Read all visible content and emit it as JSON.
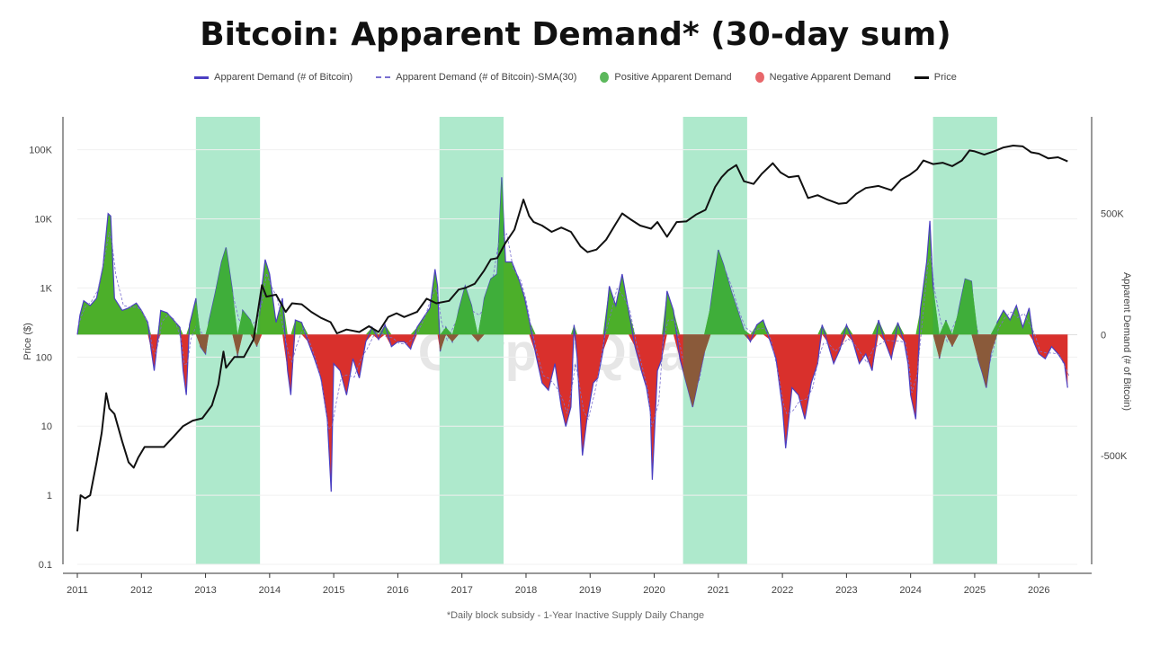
{
  "chart_data": {
    "type": "area",
    "title": "Bitcoin: Apparent Demand* (30-day sum)",
    "footnote": "*Daily block subsidy - 1-Year Inactive Supply Daily Change",
    "watermark": "CryptoQuant",
    "legend": {
      "placement": "top-center",
      "items": [
        {
          "label": "Apparent Demand (# of Bitcoin)",
          "style": "line",
          "color": "#4b3fc2"
        },
        {
          "label": "Apparent Demand (# of Bitcoin)-SMA(30)",
          "style": "dashed",
          "color": "#7a6fd0"
        },
        {
          "label": "Positive Apparent Demand",
          "style": "dot",
          "color": "#5cb85c"
        },
        {
          "label": "Negative Apparent Demand",
          "style": "dot",
          "color": "#e8676b"
        },
        {
          "label": "Price",
          "style": "line",
          "color": "#111111"
        }
      ]
    },
    "x_axis": {
      "ticks": [
        "2011",
        "2012",
        "2013",
        "2014",
        "2015",
        "2016",
        "2017",
        "2018",
        "2019",
        "2020",
        "2021",
        "2022",
        "2023",
        "2024",
        "2025",
        "2026"
      ],
      "range": [
        2011.0,
        2026.6
      ]
    },
    "y_left": {
      "label": "Price ($)",
      "scale": "log",
      "range": [
        0.1,
        300000
      ],
      "ticks": [
        "0.1",
        "1",
        "10",
        "100",
        "1K",
        "10K",
        "100K"
      ]
    },
    "y_right": {
      "label": "Apparent Demand (# of Bitcoin)",
      "scale": "linear",
      "range": [
        -950000,
        900000
      ],
      "ticks": [
        "500K",
        "0",
        "-500K"
      ]
    },
    "highlight_periods": [
      [
        2012.85,
        2013.85
      ],
      [
        2016.65,
        2017.65
      ],
      [
        2020.45,
        2021.45
      ],
      [
        2024.35,
        2025.35
      ]
    ],
    "colors": {
      "positive": "#4caf2a",
      "negative": "#d9302c",
      "overlap_positive": "#3fae3a",
      "overlap_negative": "#8a5a3a",
      "highlight": "#aee9cc",
      "demand_line": "#4b3fc2",
      "price": "#111111"
    },
    "price": [
      [
        2011.0,
        0.3
      ],
      [
        2011.05,
        1.0
      ],
      [
        2011.12,
        0.9
      ],
      [
        2011.2,
        1.0
      ],
      [
        2011.3,
        3.0
      ],
      [
        2011.38,
        8.0
      ],
      [
        2011.45,
        30.0
      ],
      [
        2011.5,
        18.0
      ],
      [
        2011.58,
        15.0
      ],
      [
        2011.7,
        6.0
      ],
      [
        2011.8,
        3.0
      ],
      [
        2011.88,
        2.5
      ],
      [
        2011.95,
        3.5
      ],
      [
        2012.05,
        5.0
      ],
      [
        2012.2,
        5.0
      ],
      [
        2012.35,
        5.0
      ],
      [
        2012.5,
        7.0
      ],
      [
        2012.65,
        10.0
      ],
      [
        2012.8,
        12.0
      ],
      [
        2012.95,
        13.0
      ],
      [
        2013.1,
        20.0
      ],
      [
        2013.2,
        40.0
      ],
      [
        2013.28,
        120.0
      ],
      [
        2013.32,
        70.0
      ],
      [
        2013.45,
        100.0
      ],
      [
        2013.6,
        100.0
      ],
      [
        2013.75,
        180.0
      ],
      [
        2013.88,
        1100.0
      ],
      [
        2013.95,
        750.0
      ],
      [
        2014.1,
        800.0
      ],
      [
        2014.25,
        450.0
      ],
      [
        2014.35,
        600.0
      ],
      [
        2014.5,
        580.0
      ],
      [
        2014.65,
        450.0
      ],
      [
        2014.8,
        370.0
      ],
      [
        2014.95,
        320.0
      ],
      [
        2015.05,
        220.0
      ],
      [
        2015.2,
        250.0
      ],
      [
        2015.4,
        230.0
      ],
      [
        2015.55,
        280.0
      ],
      [
        2015.7,
        230.0
      ],
      [
        2015.85,
        380.0
      ],
      [
        2015.98,
        430.0
      ],
      [
        2016.1,
        380.0
      ],
      [
        2016.3,
        450.0
      ],
      [
        2016.45,
        700.0
      ],
      [
        2016.6,
        600.0
      ],
      [
        2016.8,
        650.0
      ],
      [
        2016.95,
        950.0
      ],
      [
        2017.05,
        1000.0
      ],
      [
        2017.2,
        1150.0
      ],
      [
        2017.35,
        1800.0
      ],
      [
        2017.45,
        2600.0
      ],
      [
        2017.55,
        2700.0
      ],
      [
        2017.68,
        4500.0
      ],
      [
        2017.82,
        7000.0
      ],
      [
        2017.96,
        19000.0
      ],
      [
        2018.05,
        11000.0
      ],
      [
        2018.12,
        9000.0
      ],
      [
        2018.25,
        8000.0
      ],
      [
        2018.4,
        6500.0
      ],
      [
        2018.55,
        7500.0
      ],
      [
        2018.7,
        6500.0
      ],
      [
        2018.85,
        4000.0
      ],
      [
        2018.96,
        3300.0
      ],
      [
        2019.1,
        3600.0
      ],
      [
        2019.25,
        5000.0
      ],
      [
        2019.4,
        8500.0
      ],
      [
        2019.5,
        12000.0
      ],
      [
        2019.62,
        10000.0
      ],
      [
        2019.78,
        8000.0
      ],
      [
        2019.95,
        7200.0
      ],
      [
        2020.05,
        9000.0
      ],
      [
        2020.2,
        5500.0
      ],
      [
        2020.35,
        9000.0
      ],
      [
        2020.5,
        9200.0
      ],
      [
        2020.65,
        11500.0
      ],
      [
        2020.8,
        13500.0
      ],
      [
        2020.95,
        29000.0
      ],
      [
        2021.05,
        40000.0
      ],
      [
        2021.15,
        50000.0
      ],
      [
        2021.28,
        60000.0
      ],
      [
        2021.4,
        35000.0
      ],
      [
        2021.55,
        32000.0
      ],
      [
        2021.68,
        45000.0
      ],
      [
        2021.85,
        64000.0
      ],
      [
        2021.97,
        47000.0
      ],
      [
        2022.1,
        40000.0
      ],
      [
        2022.25,
        42000.0
      ],
      [
        2022.4,
        20000.0
      ],
      [
        2022.55,
        22000.0
      ],
      [
        2022.7,
        19000.0
      ],
      [
        2022.88,
        16500.0
      ],
      [
        2023.0,
        17000.0
      ],
      [
        2023.15,
        23000.0
      ],
      [
        2023.3,
        28000.0
      ],
      [
        2023.5,
        30000.0
      ],
      [
        2023.7,
        26000.0
      ],
      [
        2023.85,
        37000.0
      ],
      [
        2023.98,
        43000.0
      ],
      [
        2024.1,
        52000.0
      ],
      [
        2024.2,
        70000.0
      ],
      [
        2024.35,
        62000.0
      ],
      [
        2024.5,
        65000.0
      ],
      [
        2024.65,
        58000.0
      ],
      [
        2024.8,
        70000.0
      ],
      [
        2024.92,
        98000.0
      ],
      [
        2025.0,
        95000.0
      ],
      [
        2025.15,
        85000.0
      ],
      [
        2025.3,
        95000.0
      ],
      [
        2025.45,
        108000.0
      ],
      [
        2025.6,
        115000.0
      ],
      [
        2025.75,
        112000.0
      ],
      [
        2025.88,
        92000.0
      ],
      [
        2026.0,
        88000.0
      ],
      [
        2026.15,
        75000.0
      ],
      [
        2026.3,
        78000.0
      ],
      [
        2026.45,
        68000.0
      ]
    ],
    "apparent_demand": [
      [
        2011.0,
        0
      ],
      [
        2011.04,
        80000
      ],
      [
        2011.1,
        140000
      ],
      [
        2011.2,
        120000
      ],
      [
        2011.3,
        150000
      ],
      [
        2011.4,
        280000
      ],
      [
        2011.48,
        500000
      ],
      [
        2011.52,
        490000
      ],
      [
        2011.58,
        150000
      ],
      [
        2011.7,
        100000
      ],
      [
        2011.8,
        110000
      ],
      [
        2011.92,
        130000
      ],
      [
        2012.0,
        100000
      ],
      [
        2012.1,
        50000
      ],
      [
        2012.15,
        -60000
      ],
      [
        2012.2,
        -150000
      ],
      [
        2012.25,
        -30000
      ],
      [
        2012.3,
        100000
      ],
      [
        2012.4,
        90000
      ],
      [
        2012.5,
        60000
      ],
      [
        2012.6,
        30000
      ],
      [
        2012.65,
        -150000
      ],
      [
        2012.7,
        -250000
      ],
      [
        2012.75,
        40000
      ],
      [
        2012.85,
        150000
      ],
      [
        2012.92,
        -50000
      ],
      [
        2013.0,
        -80000
      ],
      [
        2013.05,
        50000
      ],
      [
        2013.15,
        170000
      ],
      [
        2013.25,
        300000
      ],
      [
        2013.32,
        360000
      ],
      [
        2013.42,
        180000
      ],
      [
        2013.5,
        -90000
      ],
      [
        2013.58,
        100000
      ],
      [
        2013.7,
        60000
      ],
      [
        2013.8,
        -50000
      ],
      [
        2013.88,
        200000
      ],
      [
        2013.93,
        310000
      ],
      [
        2014.0,
        250000
      ],
      [
        2014.1,
        50000
      ],
      [
        2014.2,
        150000
      ],
      [
        2014.28,
        -150000
      ],
      [
        2014.33,
        -250000
      ],
      [
        2014.4,
        60000
      ],
      [
        2014.5,
        50000
      ],
      [
        2014.6,
        -30000
      ],
      [
        2014.7,
        -100000
      ],
      [
        2014.8,
        -180000
      ],
      [
        2014.9,
        -350000
      ],
      [
        2014.96,
        -650000
      ],
      [
        2015.0,
        -120000
      ],
      [
        2015.1,
        -150000
      ],
      [
        2015.2,
        -250000
      ],
      [
        2015.3,
        -100000
      ],
      [
        2015.4,
        -180000
      ],
      [
        2015.5,
        -30000
      ],
      [
        2015.6,
        30000
      ],
      [
        2015.7,
        -20000
      ],
      [
        2015.8,
        40000
      ],
      [
        2015.9,
        -50000
      ],
      [
        2016.0,
        -30000
      ],
      [
        2016.1,
        -30000
      ],
      [
        2016.2,
        -60000
      ],
      [
        2016.3,
        30000
      ],
      [
        2016.4,
        70000
      ],
      [
        2016.5,
        110000
      ],
      [
        2016.58,
        270000
      ],
      [
        2016.62,
        200000
      ],
      [
        2016.66,
        -70000
      ],
      [
        2016.75,
        30000
      ],
      [
        2016.85,
        -30000
      ],
      [
        2016.95,
        100000
      ],
      [
        2017.05,
        200000
      ],
      [
        2017.15,
        120000
      ],
      [
        2017.25,
        -30000
      ],
      [
        2017.35,
        150000
      ],
      [
        2017.45,
        230000
      ],
      [
        2017.55,
        250000
      ],
      [
        2017.62,
        650000
      ],
      [
        2017.68,
        300000
      ],
      [
        2017.78,
        300000
      ],
      [
        2017.9,
        220000
      ],
      [
        2017.98,
        150000
      ],
      [
        2018.05,
        60000
      ],
      [
        2018.15,
        -80000
      ],
      [
        2018.25,
        -200000
      ],
      [
        2018.35,
        -230000
      ],
      [
        2018.45,
        -120000
      ],
      [
        2018.55,
        -300000
      ],
      [
        2018.62,
        -380000
      ],
      [
        2018.7,
        -300000
      ],
      [
        2018.75,
        40000
      ],
      [
        2018.8,
        -100000
      ],
      [
        2018.88,
        -500000
      ],
      [
        2018.95,
        -350000
      ],
      [
        2019.05,
        -200000
      ],
      [
        2019.12,
        -180000
      ],
      [
        2019.2,
        -70000
      ],
      [
        2019.3,
        200000
      ],
      [
        2019.4,
        120000
      ],
      [
        2019.5,
        250000
      ],
      [
        2019.6,
        100000
      ],
      [
        2019.7,
        -50000
      ],
      [
        2019.8,
        -150000
      ],
      [
        2019.88,
        -220000
      ],
      [
        2019.94,
        -320000
      ],
      [
        2019.97,
        -600000
      ],
      [
        2020.05,
        -150000
      ],
      [
        2020.12,
        -100000
      ],
      [
        2020.2,
        180000
      ],
      [
        2020.3,
        100000
      ],
      [
        2020.4,
        -100000
      ],
      [
        2020.5,
        -200000
      ],
      [
        2020.6,
        -300000
      ],
      [
        2020.68,
        -200000
      ],
      [
        2020.78,
        -80000
      ],
      [
        2020.88,
        120000
      ],
      [
        2021.0,
        350000
      ],
      [
        2021.08,
        290000
      ],
      [
        2021.2,
        180000
      ],
      [
        2021.3,
        100000
      ],
      [
        2021.4,
        20000
      ],
      [
        2021.5,
        -30000
      ],
      [
        2021.6,
        40000
      ],
      [
        2021.7,
        60000
      ],
      [
        2021.8,
        -20000
      ],
      [
        2021.9,
        -100000
      ],
      [
        2022.0,
        -300000
      ],
      [
        2022.05,
        -470000
      ],
      [
        2022.15,
        -220000
      ],
      [
        2022.25,
        -250000
      ],
      [
        2022.35,
        -350000
      ],
      [
        2022.45,
        -200000
      ],
      [
        2022.55,
        -120000
      ],
      [
        2022.62,
        40000
      ],
      [
        2022.7,
        -30000
      ],
      [
        2022.8,
        -120000
      ],
      [
        2022.9,
        -60000
      ],
      [
        2023.0,
        40000
      ],
      [
        2023.1,
        -30000
      ],
      [
        2023.2,
        -120000
      ],
      [
        2023.3,
        -80000
      ],
      [
        2023.4,
        -150000
      ],
      [
        2023.5,
        60000
      ],
      [
        2023.6,
        -30000
      ],
      [
        2023.7,
        -100000
      ],
      [
        2023.8,
        50000
      ],
      [
        2023.9,
        -30000
      ],
      [
        2023.96,
        -120000
      ],
      [
        2024.0,
        -250000
      ],
      [
        2024.08,
        -350000
      ],
      [
        2024.15,
        100000
      ],
      [
        2024.25,
        300000
      ],
      [
        2024.3,
        470000
      ],
      [
        2024.35,
        200000
      ],
      [
        2024.45,
        -100000
      ],
      [
        2024.55,
        60000
      ],
      [
        2024.65,
        -50000
      ],
      [
        2024.75,
        100000
      ],
      [
        2024.85,
        230000
      ],
      [
        2024.95,
        220000
      ],
      [
        2025.05,
        -100000
      ],
      [
        2025.12,
        -160000
      ],
      [
        2025.18,
        -220000
      ],
      [
        2025.25,
        -80000
      ],
      [
        2025.35,
        50000
      ],
      [
        2025.45,
        100000
      ],
      [
        2025.55,
        60000
      ],
      [
        2025.65,
        120000
      ],
      [
        2025.75,
        30000
      ],
      [
        2025.85,
        110000
      ],
      [
        2025.92,
        -30000
      ],
      [
        2026.0,
        -80000
      ],
      [
        2026.1,
        -100000
      ],
      [
        2026.2,
        -50000
      ],
      [
        2026.3,
        -80000
      ],
      [
        2026.4,
        -120000
      ],
      [
        2026.45,
        -220000
      ]
    ]
  }
}
